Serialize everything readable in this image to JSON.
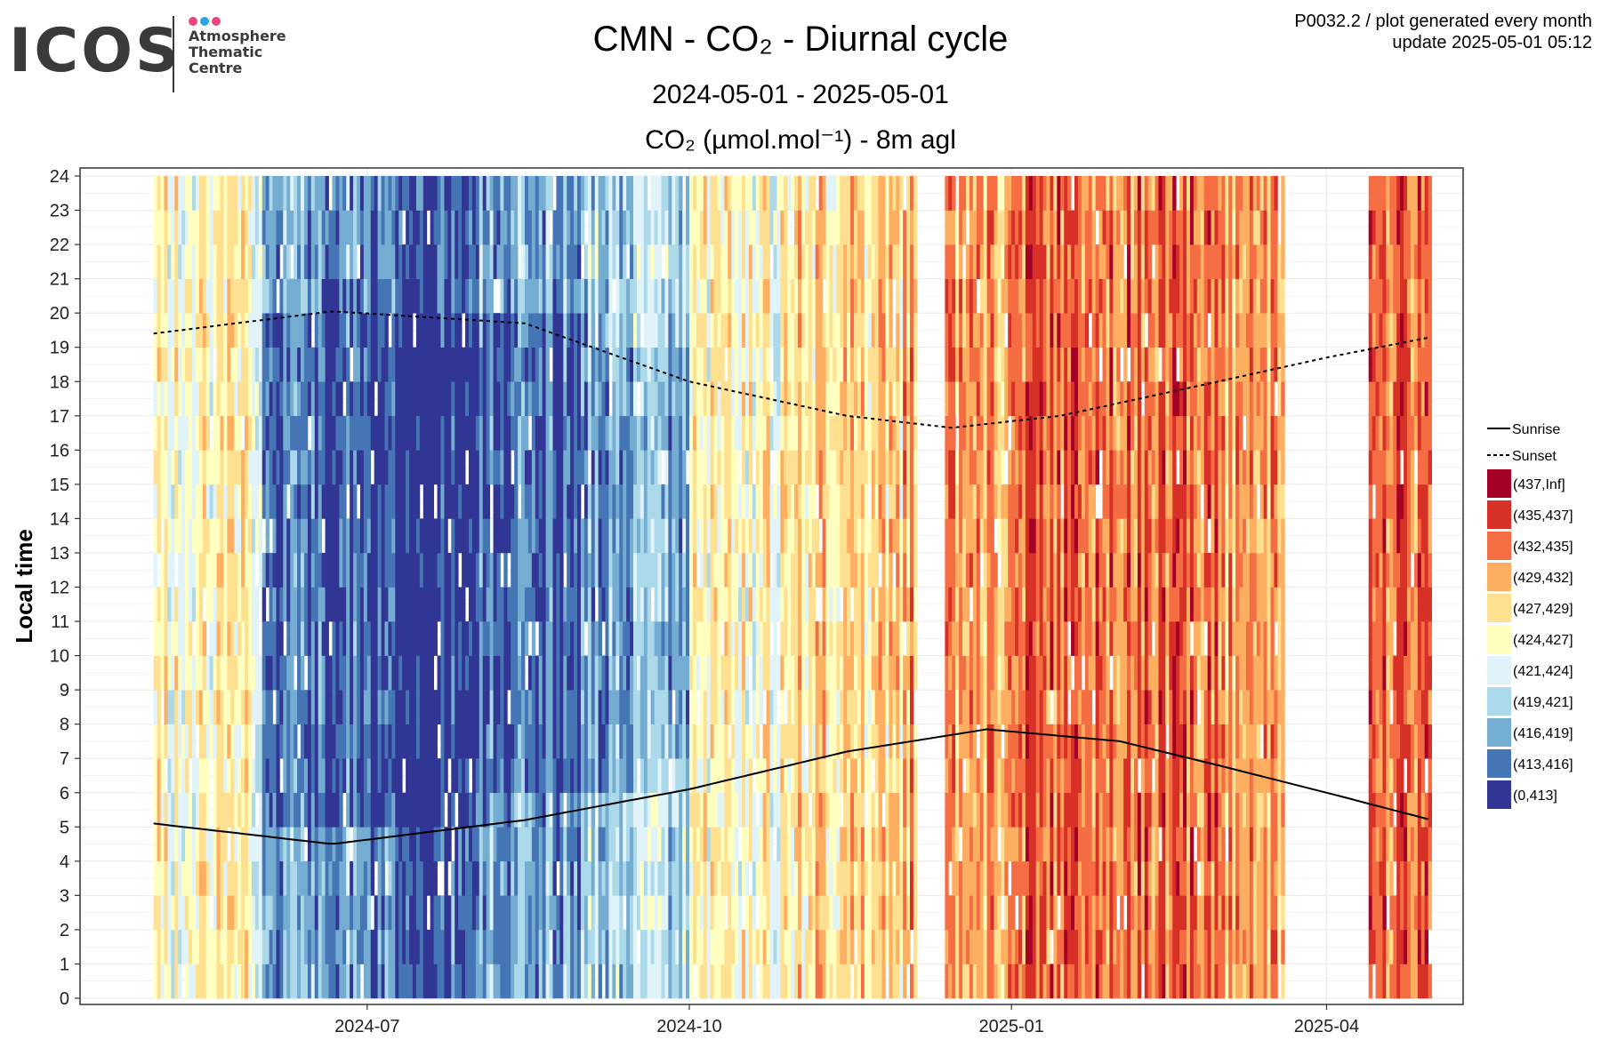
{
  "logo": {
    "wordmark": "ICOS",
    "lines": [
      "Atmosphere",
      "Thematic",
      "Centre"
    ],
    "dot_colors": [
      "#e8457a",
      "#2aa6e0",
      "#e8457a"
    ]
  },
  "header": {
    "title": "CMN - CO₂ - Diurnal cycle",
    "date_range": "2024-05-01 - 2025-05-01",
    "variable": "CO₂ (µmol.mol⁻¹) - 8m agl",
    "note_line1": "P0032.2 / plot generated every month",
    "note_line2": "update  2025-05-01 05:12"
  },
  "chart_data": {
    "type": "heatmap",
    "ylabel": "Local time",
    "x_range": [
      "2024-05-01",
      "2025-05-01"
    ],
    "x_ticks": [
      "2024-07",
      "2024-10",
      "2025-01",
      "2025-04"
    ],
    "y_ticks": [
      0,
      1,
      2,
      3,
      4,
      5,
      6,
      7,
      8,
      9,
      10,
      11,
      12,
      13,
      14,
      15,
      16,
      17,
      18,
      19,
      20,
      21,
      22,
      23,
      24
    ],
    "ylim": [
      0,
      24
    ],
    "grid": true,
    "legend_position": "right",
    "cell_resolution": "daily x hourly",
    "line_legend": [
      {
        "name": "Sunrise",
        "style": "solid"
      },
      {
        "name": "Sunset",
        "style": "dashed"
      }
    ],
    "color_bins": [
      {
        "label": "(437,Inf]",
        "color": "#a50026"
      },
      {
        "label": "(435,437]",
        "color": "#d73027"
      },
      {
        "label": "(432,435]",
        "color": "#f46d43"
      },
      {
        "label": "(429,432]",
        "color": "#fdae61"
      },
      {
        "label": "(427,429]",
        "color": "#fee090"
      },
      {
        "label": "(424,427]",
        "color": "#ffffbf"
      },
      {
        "label": "(421,424]",
        "color": "#e0f3f8"
      },
      {
        "label": "(419,421]",
        "color": "#abd9e9"
      },
      {
        "label": "(416,419]",
        "color": "#74add1"
      },
      {
        "label": "(413,416]",
        "color": "#4575b4"
      },
      {
        "label": "(0,413]",
        "color": "#313695"
      }
    ],
    "sunrise": {
      "date": [
        "2024-05-01",
        "2024-06-21",
        "2024-08-15",
        "2024-10-01",
        "2024-11-15",
        "2024-12-25",
        "2025-02-01",
        "2025-03-01",
        "2025-04-01",
        "2025-05-01"
      ],
      "hour": [
        5.1,
        4.5,
        5.2,
        6.1,
        7.2,
        7.85,
        7.5,
        6.8,
        6.0,
        5.2
      ]
    },
    "sunset": {
      "date": [
        "2024-05-01",
        "2024-06-21",
        "2024-08-15",
        "2024-10-01",
        "2024-11-15",
        "2024-12-15",
        "2025-01-15",
        "2025-03-01",
        "2025-04-01",
        "2025-05-01"
      ],
      "hour": [
        19.4,
        20.05,
        19.7,
        18.0,
        17.0,
        16.65,
        17.0,
        18.0,
        18.7,
        19.3
      ]
    },
    "approx_median_bin_index_by_month": {
      "2024-05": 5,
      "2024-06": 8,
      "2024-07": 9,
      "2024-08": 8,
      "2024-09": 7,
      "2024-10": 5,
      "2024-11": 4,
      "2024-12": 3,
      "2025-01": 2,
      "2025-02": 2,
      "2025-03": 3,
      "2025-04": 2
    },
    "missing_periods": [
      [
        "2024-12-05",
        "2024-12-12"
      ],
      [
        "2025-03-20",
        "2025-04-12"
      ]
    ]
  }
}
